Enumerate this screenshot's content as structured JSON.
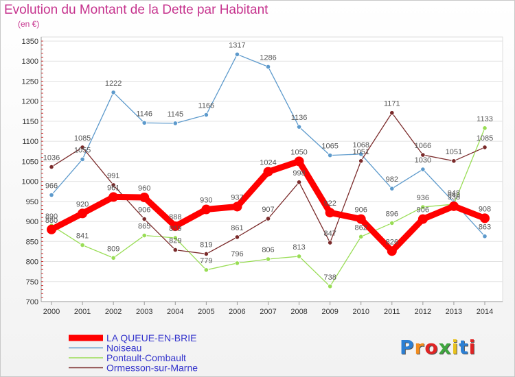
{
  "header": {
    "title": "Evolution du Montant de la Dette par Habitant",
    "subtitle": "(en €)"
  },
  "logo": {
    "text": "Proxiti"
  },
  "chart_data": {
    "type": "line",
    "title": "Evolution du Montant de la Dette par Habitant",
    "subtitle": "(en €)",
    "xlabel": "",
    "ylabel": "",
    "x": [
      "2000",
      "2001",
      "2002",
      "2003",
      "2004",
      "2005",
      "2006",
      "2007",
      "2008",
      "2009",
      "2010",
      "2011",
      "2012",
      "2013",
      "2014"
    ],
    "ylim": [
      700,
      1350
    ],
    "yticks": [
      700,
      750,
      800,
      850,
      900,
      950,
      1000,
      1050,
      1100,
      1150,
      1200,
      1250,
      1300,
      1350
    ],
    "grid": "horizontal",
    "legend_position": "bottom-left",
    "series": [
      {
        "name": "LA QUEUE-EN-BRIE",
        "color": "#ff0000",
        "legend_color": "#3333cc",
        "values": [
          880,
          920,
          961,
          960,
          888,
          930,
          937,
          1024,
          1050,
          922,
          906,
          826,
          906,
          938,
          908
        ],
        "labels": [
          "880",
          "920",
          "961",
          "960",
          "888",
          "930",
          "937",
          "1024",
          "1050",
          "922",
          "906",
          "826",
          "906",
          "938",
          "908"
        ]
      },
      {
        "name": "Noiseau",
        "color": "#5d9acc",
        "legend_color": "#3333cc",
        "values": [
          966,
          1055,
          1222,
          1146,
          1145,
          1166,
          1317,
          1286,
          1136,
          1065,
          1068,
          982,
          1030,
          948,
          863
        ],
        "labels": [
          "966",
          "1055",
          "1222",
          "1146",
          "1145",
          "1166",
          "1317",
          "1286",
          "1136",
          "1065",
          "1068",
          "982",
          "1030",
          "948",
          "863"
        ]
      },
      {
        "name": "Pontault-Combault",
        "color": "#99dd55",
        "legend_color": "#3333cc",
        "values": [
          890,
          841,
          809,
          865,
          859,
          779,
          796,
          806,
          813,
          738,
          862,
          896,
          936,
          943,
          1133
        ],
        "labels": [
          "890",
          "841",
          "809",
          "865",
          "859",
          "779",
          "796",
          "806",
          "813",
          "738",
          "862",
          "896",
          "936",
          "943",
          "1133"
        ]
      },
      {
        "name": "Ormesson-sur-Marne",
        "color": "#7a2a2a",
        "legend_color": "#3333cc",
        "values": [
          1036,
          1085,
          991,
          906,
          829,
          819,
          861,
          907,
          998,
          847,
          1051,
          1171,
          1066,
          1051,
          1085
        ],
        "labels": [
          "1036",
          "1085",
          "991",
          "906",
          "829",
          "819",
          "861",
          "907",
          "998",
          "847",
          "1051",
          "1171",
          "1066",
          "1051",
          "1085"
        ]
      }
    ]
  }
}
